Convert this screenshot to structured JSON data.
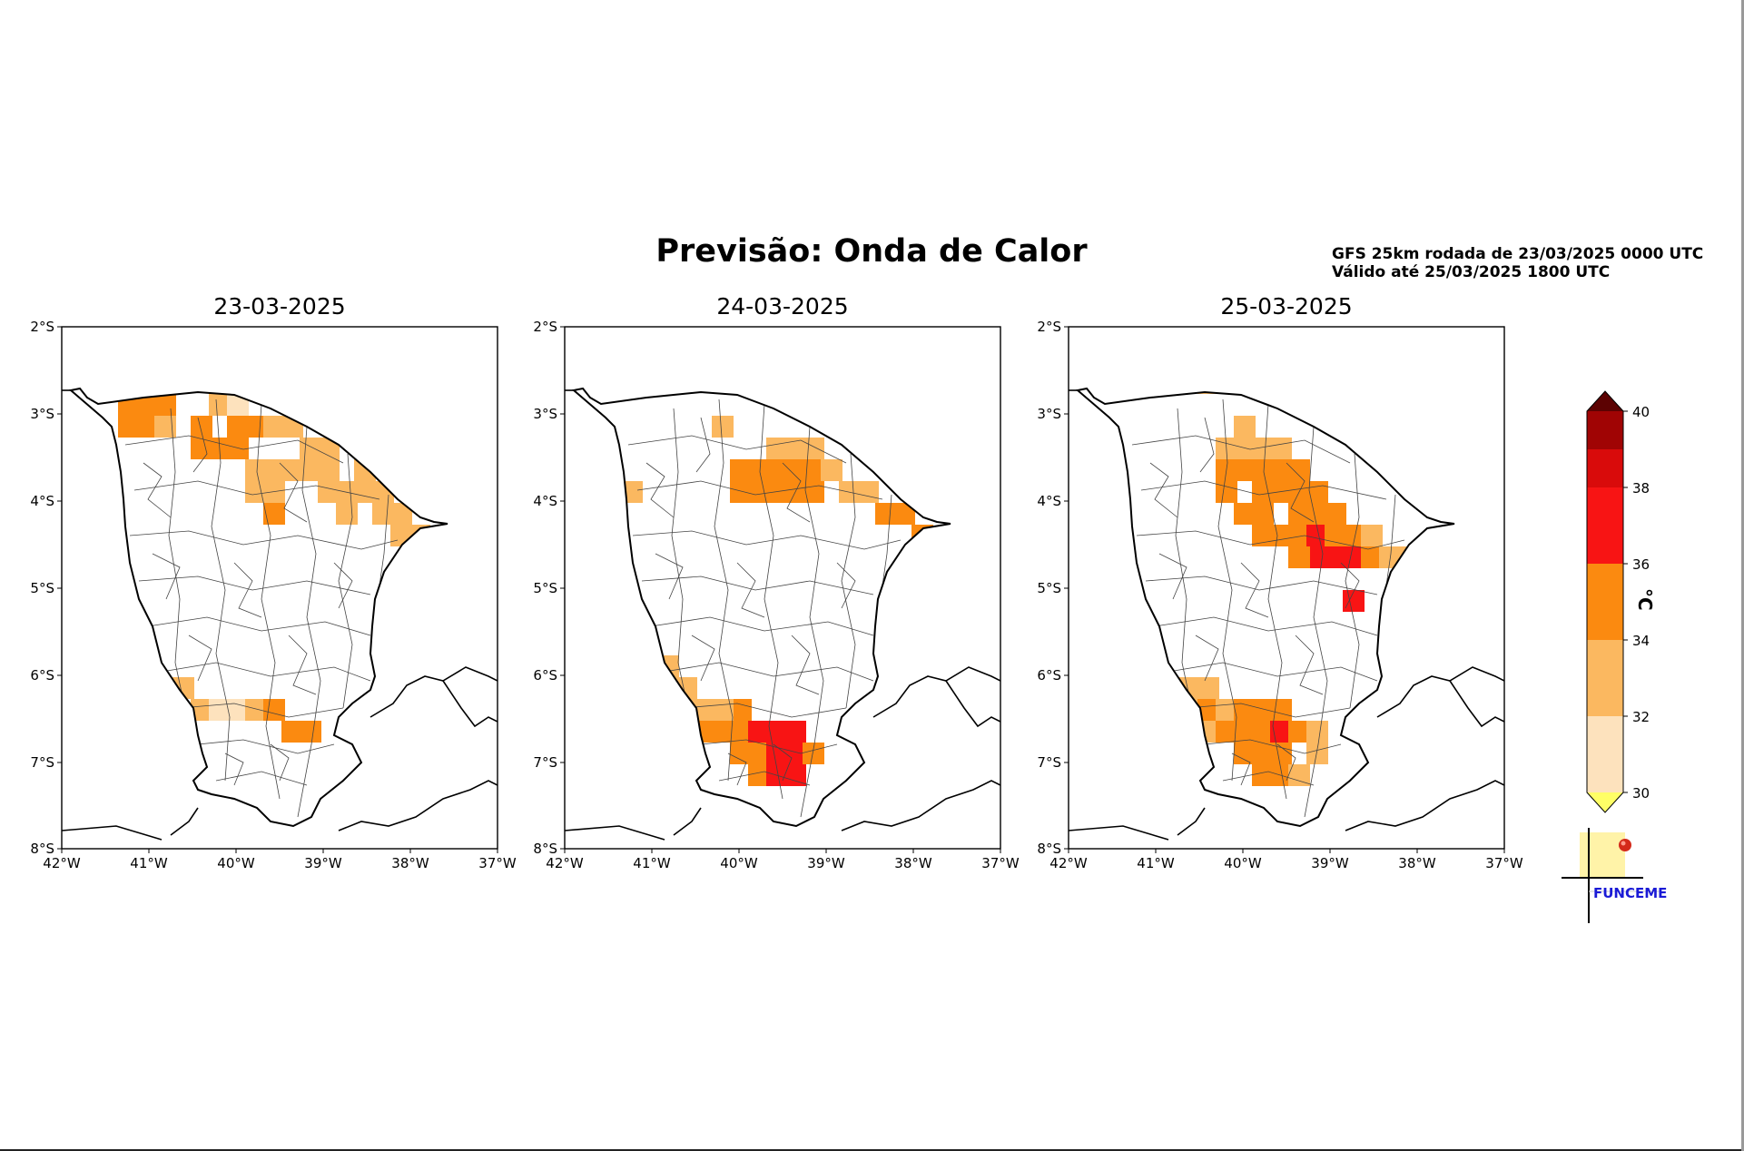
{
  "title": "Previsão: Onda de Calor",
  "run_info": {
    "line1": "GFS 25km rodada de 23/03/2025 0000 UTC",
    "line2": "Válido até 25/03/2025 1800 UTC"
  },
  "panels": [
    {
      "date": "23-03-2025"
    },
    {
      "date": "24-03-2025"
    },
    {
      "date": "25-03-2025"
    }
  ],
  "axes": {
    "lon_labels": [
      "42°W",
      "41°W",
      "40°W",
      "39°W",
      "38°W",
      "37°W"
    ],
    "lat_labels": [
      "2°S",
      "3°S",
      "4°S",
      "5°S",
      "6°S",
      "7°S",
      "8°S"
    ]
  },
  "colorbar": {
    "unit": "°C",
    "ticks": [
      "30",
      "32",
      "34",
      "36",
      "38",
      "40"
    ],
    "levels": [
      {
        "min": 30,
        "max": 32,
        "color": "#fde2bd"
      },
      {
        "min": 32,
        "max": 34,
        "color": "#fbb860"
      },
      {
        "min": 34,
        "max": 36,
        "color": "#fb8a10"
      },
      {
        "min": 36,
        "max": 38,
        "color": "#f81414"
      },
      {
        "min": 38,
        "max": 39,
        "color": "#d90b0b"
      },
      {
        "min": 39,
        "max": 40,
        "color": "#a00404"
      }
    ],
    "over_color": "#5c0202",
    "under_color": "#ffff66"
  },
  "logo": {
    "text": "FUNCEME"
  }
}
